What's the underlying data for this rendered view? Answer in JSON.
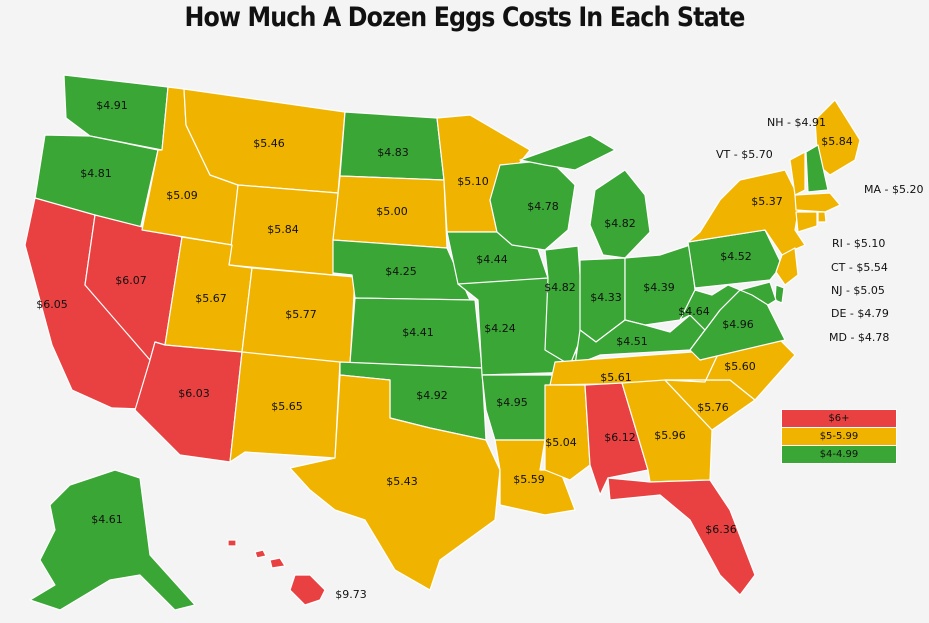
{
  "title": "How Much A Dozen Eggs Costs In Each State",
  "colors": {
    "red": "#e94141",
    "gold": "#f0b400",
    "green": "#3aa635"
  },
  "legend": [
    {
      "label": "$6+",
      "color": "red"
    },
    {
      "label": "$5-5.99",
      "color": "gold"
    },
    {
      "label": "$4-4.99",
      "color": "green"
    }
  ],
  "states": [
    {
      "code": "WA",
      "price": "$4.91",
      "color": "green"
    },
    {
      "code": "OR",
      "price": "$4.81",
      "color": "green"
    },
    {
      "code": "CA",
      "price": "$6.05",
      "color": "red"
    },
    {
      "code": "NV",
      "price": "$6.07",
      "color": "red"
    },
    {
      "code": "ID",
      "price": "$5.09",
      "color": "gold"
    },
    {
      "code": "MT",
      "price": "$5.46",
      "color": "gold"
    },
    {
      "code": "WY",
      "price": "$5.84",
      "color": "gold"
    },
    {
      "code": "UT",
      "price": "$5.67",
      "color": "gold"
    },
    {
      "code": "CO",
      "price": "$5.77",
      "color": "gold"
    },
    {
      "code": "AZ",
      "price": "$6.03",
      "color": "red"
    },
    {
      "code": "NM",
      "price": "$5.65",
      "color": "gold"
    },
    {
      "code": "ND",
      "price": "$4.83",
      "color": "green"
    },
    {
      "code": "SD",
      "price": "$5.00",
      "color": "gold"
    },
    {
      "code": "NE",
      "price": "$4.25",
      "color": "green"
    },
    {
      "code": "KS",
      "price": "$4.41",
      "color": "green"
    },
    {
      "code": "OK",
      "price": "$4.92",
      "color": "green"
    },
    {
      "code": "TX",
      "price": "$5.43",
      "color": "gold"
    },
    {
      "code": "MN",
      "price": "$5.10",
      "color": "gold"
    },
    {
      "code": "IA",
      "price": "$4.44",
      "color": "green"
    },
    {
      "code": "MO",
      "price": "$4.24",
      "color": "green"
    },
    {
      "code": "AR",
      "price": "$4.95",
      "color": "green"
    },
    {
      "code": "LA",
      "price": "$5.59",
      "color": "gold"
    },
    {
      "code": "WI",
      "price": "$4.78",
      "color": "green"
    },
    {
      "code": "IL",
      "price": "$4.82",
      "color": "green"
    },
    {
      "code": "MI",
      "price": "$4.82",
      "color": "green"
    },
    {
      "code": "IN",
      "price": "$4.33",
      "color": "green"
    },
    {
      "code": "OH",
      "price": "$4.39",
      "color": "green"
    },
    {
      "code": "KY",
      "price": "$4.51",
      "color": "green"
    },
    {
      "code": "TN",
      "price": "$5.61",
      "color": "gold"
    },
    {
      "code": "MS",
      "price": "$5.04",
      "color": "gold"
    },
    {
      "code": "AL",
      "price": "$6.12",
      "color": "red"
    },
    {
      "code": "GA",
      "price": "$5.96",
      "color": "gold"
    },
    {
      "code": "FL",
      "price": "$6.36",
      "color": "red"
    },
    {
      "code": "SC",
      "price": "$5.76",
      "color": "gold"
    },
    {
      "code": "NC",
      "price": "$5.60",
      "color": "gold"
    },
    {
      "code": "VA",
      "price": "$4.96",
      "color": "green"
    },
    {
      "code": "WV",
      "price": "$4.64",
      "color": "green"
    },
    {
      "code": "PA",
      "price": "$4.52",
      "color": "green"
    },
    {
      "code": "NY",
      "price": "$5.37",
      "color": "gold"
    },
    {
      "code": "ME",
      "price": "$5.84",
      "color": "gold"
    },
    {
      "code": "AK",
      "price": "$4.61",
      "color": "green"
    },
    {
      "code": "HI",
      "price": "$9.73",
      "color": "red"
    },
    {
      "code": "VT",
      "price": "$5.70",
      "color": "gold"
    },
    {
      "code": "NH",
      "price": "$4.91",
      "color": "green"
    },
    {
      "code": "MA",
      "price": "$5.20",
      "color": "gold"
    },
    {
      "code": "RI",
      "price": "$5.10",
      "color": "gold"
    },
    {
      "code": "CT",
      "price": "$5.54",
      "color": "gold"
    },
    {
      "code": "NJ",
      "price": "$5.05",
      "color": "gold"
    },
    {
      "code": "DE",
      "price": "$4.79",
      "color": "green"
    },
    {
      "code": "MD",
      "price": "$4.78",
      "color": "green"
    }
  ],
  "side_labels": [
    "NH",
    "VT",
    "MA",
    "RI",
    "CT",
    "NJ",
    "DE",
    "MD"
  ],
  "side_separator": " - "
}
